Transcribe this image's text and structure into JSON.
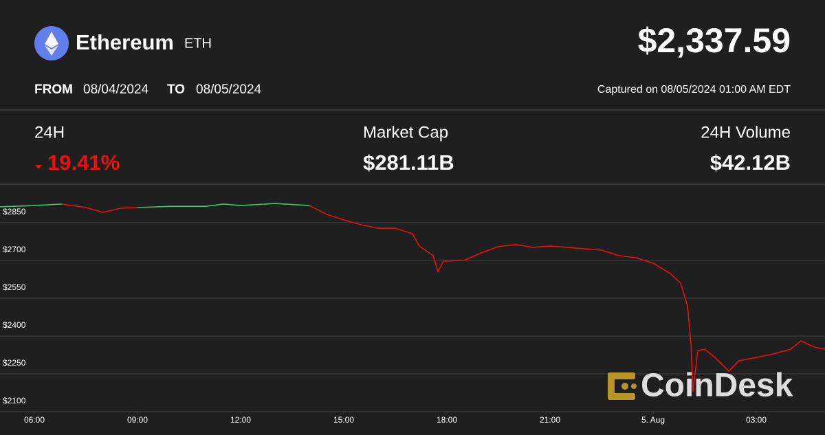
{
  "header": {
    "name": "Ethereum",
    "symbol": "ETH",
    "price": "$2,337.59",
    "from_label": "FROM",
    "from": "08/04/2024",
    "to_label": "TO",
    "to": "08/05/2024",
    "captured": "Captured on 08/05/2024 01:00 AM EDT"
  },
  "stats": [
    {
      "label": "24H",
      "value": "19.41%"
    },
    {
      "label": "Market Cap",
      "value": "$281.11B"
    },
    {
      "label": "24H Volume",
      "value": "$42.12B"
    }
  ],
  "brand": "CoinDesk",
  "chart_data": {
    "type": "line",
    "x": [
      5,
      6,
      6.8,
      7.5,
      8,
      8.5,
      9,
      10,
      11,
      11.5,
      12,
      13,
      14,
      14.5,
      15,
      15.5,
      16,
      16.5,
      17,
      17.2,
      17.6,
      17.74,
      17.9,
      18.5,
      19,
      19.5,
      20,
      20.5,
      21,
      21.5,
      22,
      22.5,
      23,
      23.5,
      24,
      24.5,
      24.8,
      25,
      25.1,
      25.16,
      25.3,
      25.5,
      25.8,
      26.2,
      26.5,
      27,
      27.5,
      28,
      28.3,
      28.7,
      29
    ],
    "series": [
      {
        "color": "#e8120c",
        "up_color": "#3cc76a",
        "values": [
          2913,
          2918,
          2924,
          2910,
          2891,
          2907,
          2910,
          2915,
          2915,
          2924,
          2918,
          2926,
          2918,
          2883,
          2861,
          2842,
          2828,
          2828,
          2806,
          2757,
          2719,
          2656,
          2697,
          2700,
          2730,
          2755,
          2763,
          2752,
          2757,
          2752,
          2746,
          2741,
          2719,
          2711,
          2689,
          2648,
          2610,
          2520,
          2370,
          2179,
          2343,
          2348,
          2315,
          2261,
          2302,
          2315,
          2329,
          2348,
          2381,
          2356,
          2348
        ]
      }
    ],
    "xlim": [
      5,
      29
    ],
    "xticks": [
      {
        "value": 6,
        "label": "06:00"
      },
      {
        "value": 9,
        "label": "09:00"
      },
      {
        "value": 12,
        "label": "12:00"
      },
      {
        "value": 15,
        "label": "15:00"
      },
      {
        "value": 18,
        "label": "18:00"
      },
      {
        "value": 21,
        "label": "21:00"
      },
      {
        "value": 24,
        "label": "5. Aug"
      },
      {
        "value": 27,
        "label": "03:00"
      }
    ],
    "ylim": [
      2100,
      3000
    ],
    "yticks": [
      {
        "value": 2100,
        "label": "$2100"
      },
      {
        "value": 2250,
        "label": "$2250"
      },
      {
        "value": 2400,
        "label": "$2400"
      },
      {
        "value": 2550,
        "label": "$2550"
      },
      {
        "value": 2700,
        "label": "$2700"
      },
      {
        "value": 2850,
        "label": "$2850"
      }
    ],
    "grid": true
  }
}
